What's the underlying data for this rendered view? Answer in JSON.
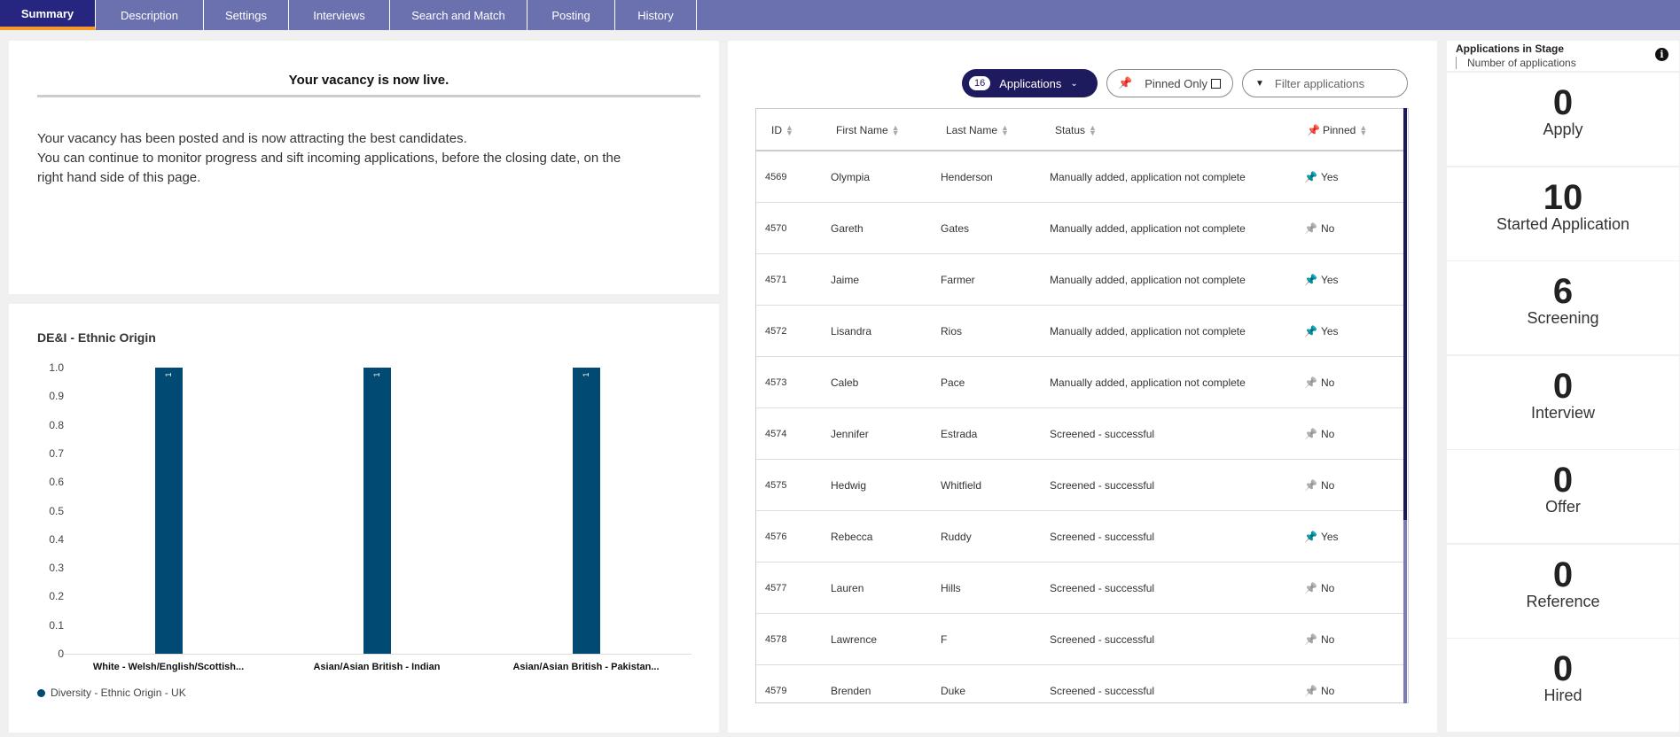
{
  "tabs": [
    {
      "label": "Summary"
    },
    {
      "label": "Description"
    },
    {
      "label": "Settings"
    },
    {
      "label": "Interviews"
    },
    {
      "label": "Search and Match"
    },
    {
      "label": "Posting"
    },
    {
      "label": "History"
    }
  ],
  "live": {
    "title": "Your vacancy is now live.",
    "line1": "Your vacancy has been posted and is now attracting the best candidates.",
    "line2": "You can continue to monitor progress and sift incoming applications, before the closing date, on the",
    "line3": "right hand side of this page."
  },
  "chart_data": {
    "type": "bar",
    "title": "DE&I - Ethnic Origin",
    "categories": [
      "White - Welsh/English/Scottish...",
      "Asian/Asian British - Indian",
      "Asian/Asian British - Pakistan..."
    ],
    "series": [
      {
        "name": "Diversity - Ethnic Origin - UK",
        "values": [
          1,
          1,
          1
        ],
        "color": "#004a73"
      }
    ],
    "ylim": [
      0,
      1
    ],
    "yticks": [
      "1.0",
      "0.9",
      "0.8",
      "0.7",
      "0.6",
      "0.5",
      "0.4",
      "0.3",
      "0.2",
      "0.1",
      "0"
    ],
    "data_labels": [
      "1",
      "1",
      "1"
    ],
    "legend": "bottom-left",
    "grid": false
  },
  "apps": {
    "count": "16",
    "label": "Applications",
    "pinned_only": "Pinned Only",
    "filter_placeholder": "Filter applications",
    "headers": {
      "id": "ID",
      "first": "First Name",
      "last": "Last Name",
      "status": "Status",
      "pinned": "Pinned"
    },
    "rows": [
      {
        "id": "4569",
        "first": "Olympia",
        "last": "Henderson",
        "status": "Manually added, application not complete",
        "pinned": "Yes"
      },
      {
        "id": "4570",
        "first": "Gareth",
        "last": "Gates",
        "status": "Manually added, application not complete",
        "pinned": "No"
      },
      {
        "id": "4571",
        "first": "Jaime",
        "last": "Farmer",
        "status": "Manually added, application not complete",
        "pinned": "Yes"
      },
      {
        "id": "4572",
        "first": "Lisandra",
        "last": "Rios",
        "status": "Manually added, application not complete",
        "pinned": "Yes"
      },
      {
        "id": "4573",
        "first": "Caleb",
        "last": "Pace",
        "status": "Manually added, application not complete",
        "pinned": "No"
      },
      {
        "id": "4574",
        "first": "Jennifer",
        "last": "Estrada",
        "status": "Screened - successful",
        "pinned": "No"
      },
      {
        "id": "4575",
        "first": "Hedwig",
        "last": "Whitfield",
        "status": "Screened - successful",
        "pinned": "No"
      },
      {
        "id": "4576",
        "first": "Rebecca",
        "last": "Ruddy",
        "status": "Screened - successful",
        "pinned": "Yes"
      },
      {
        "id": "4577",
        "first": "Lauren",
        "last": "Hills",
        "status": "Screened - successful",
        "pinned": "No"
      },
      {
        "id": "4578",
        "first": "Lawrence",
        "last": "F",
        "status": "Screened - successful",
        "pinned": "No"
      },
      {
        "id": "4579",
        "first": "Brenden",
        "last": "Duke",
        "status": "Screened - successful",
        "pinned": "No"
      }
    ]
  },
  "stages": {
    "title": "Applications in Stage",
    "subtitle": "Number of applications",
    "items": [
      {
        "count": "0",
        "label": "Apply"
      },
      {
        "count": "10",
        "label": "Started Application"
      },
      {
        "count": "6",
        "label": "Screening"
      },
      {
        "count": "0",
        "label": "Interview"
      },
      {
        "count": "0",
        "label": "Offer"
      },
      {
        "count": "0",
        "label": "Reference"
      },
      {
        "count": "0",
        "label": "Hired"
      }
    ]
  }
}
